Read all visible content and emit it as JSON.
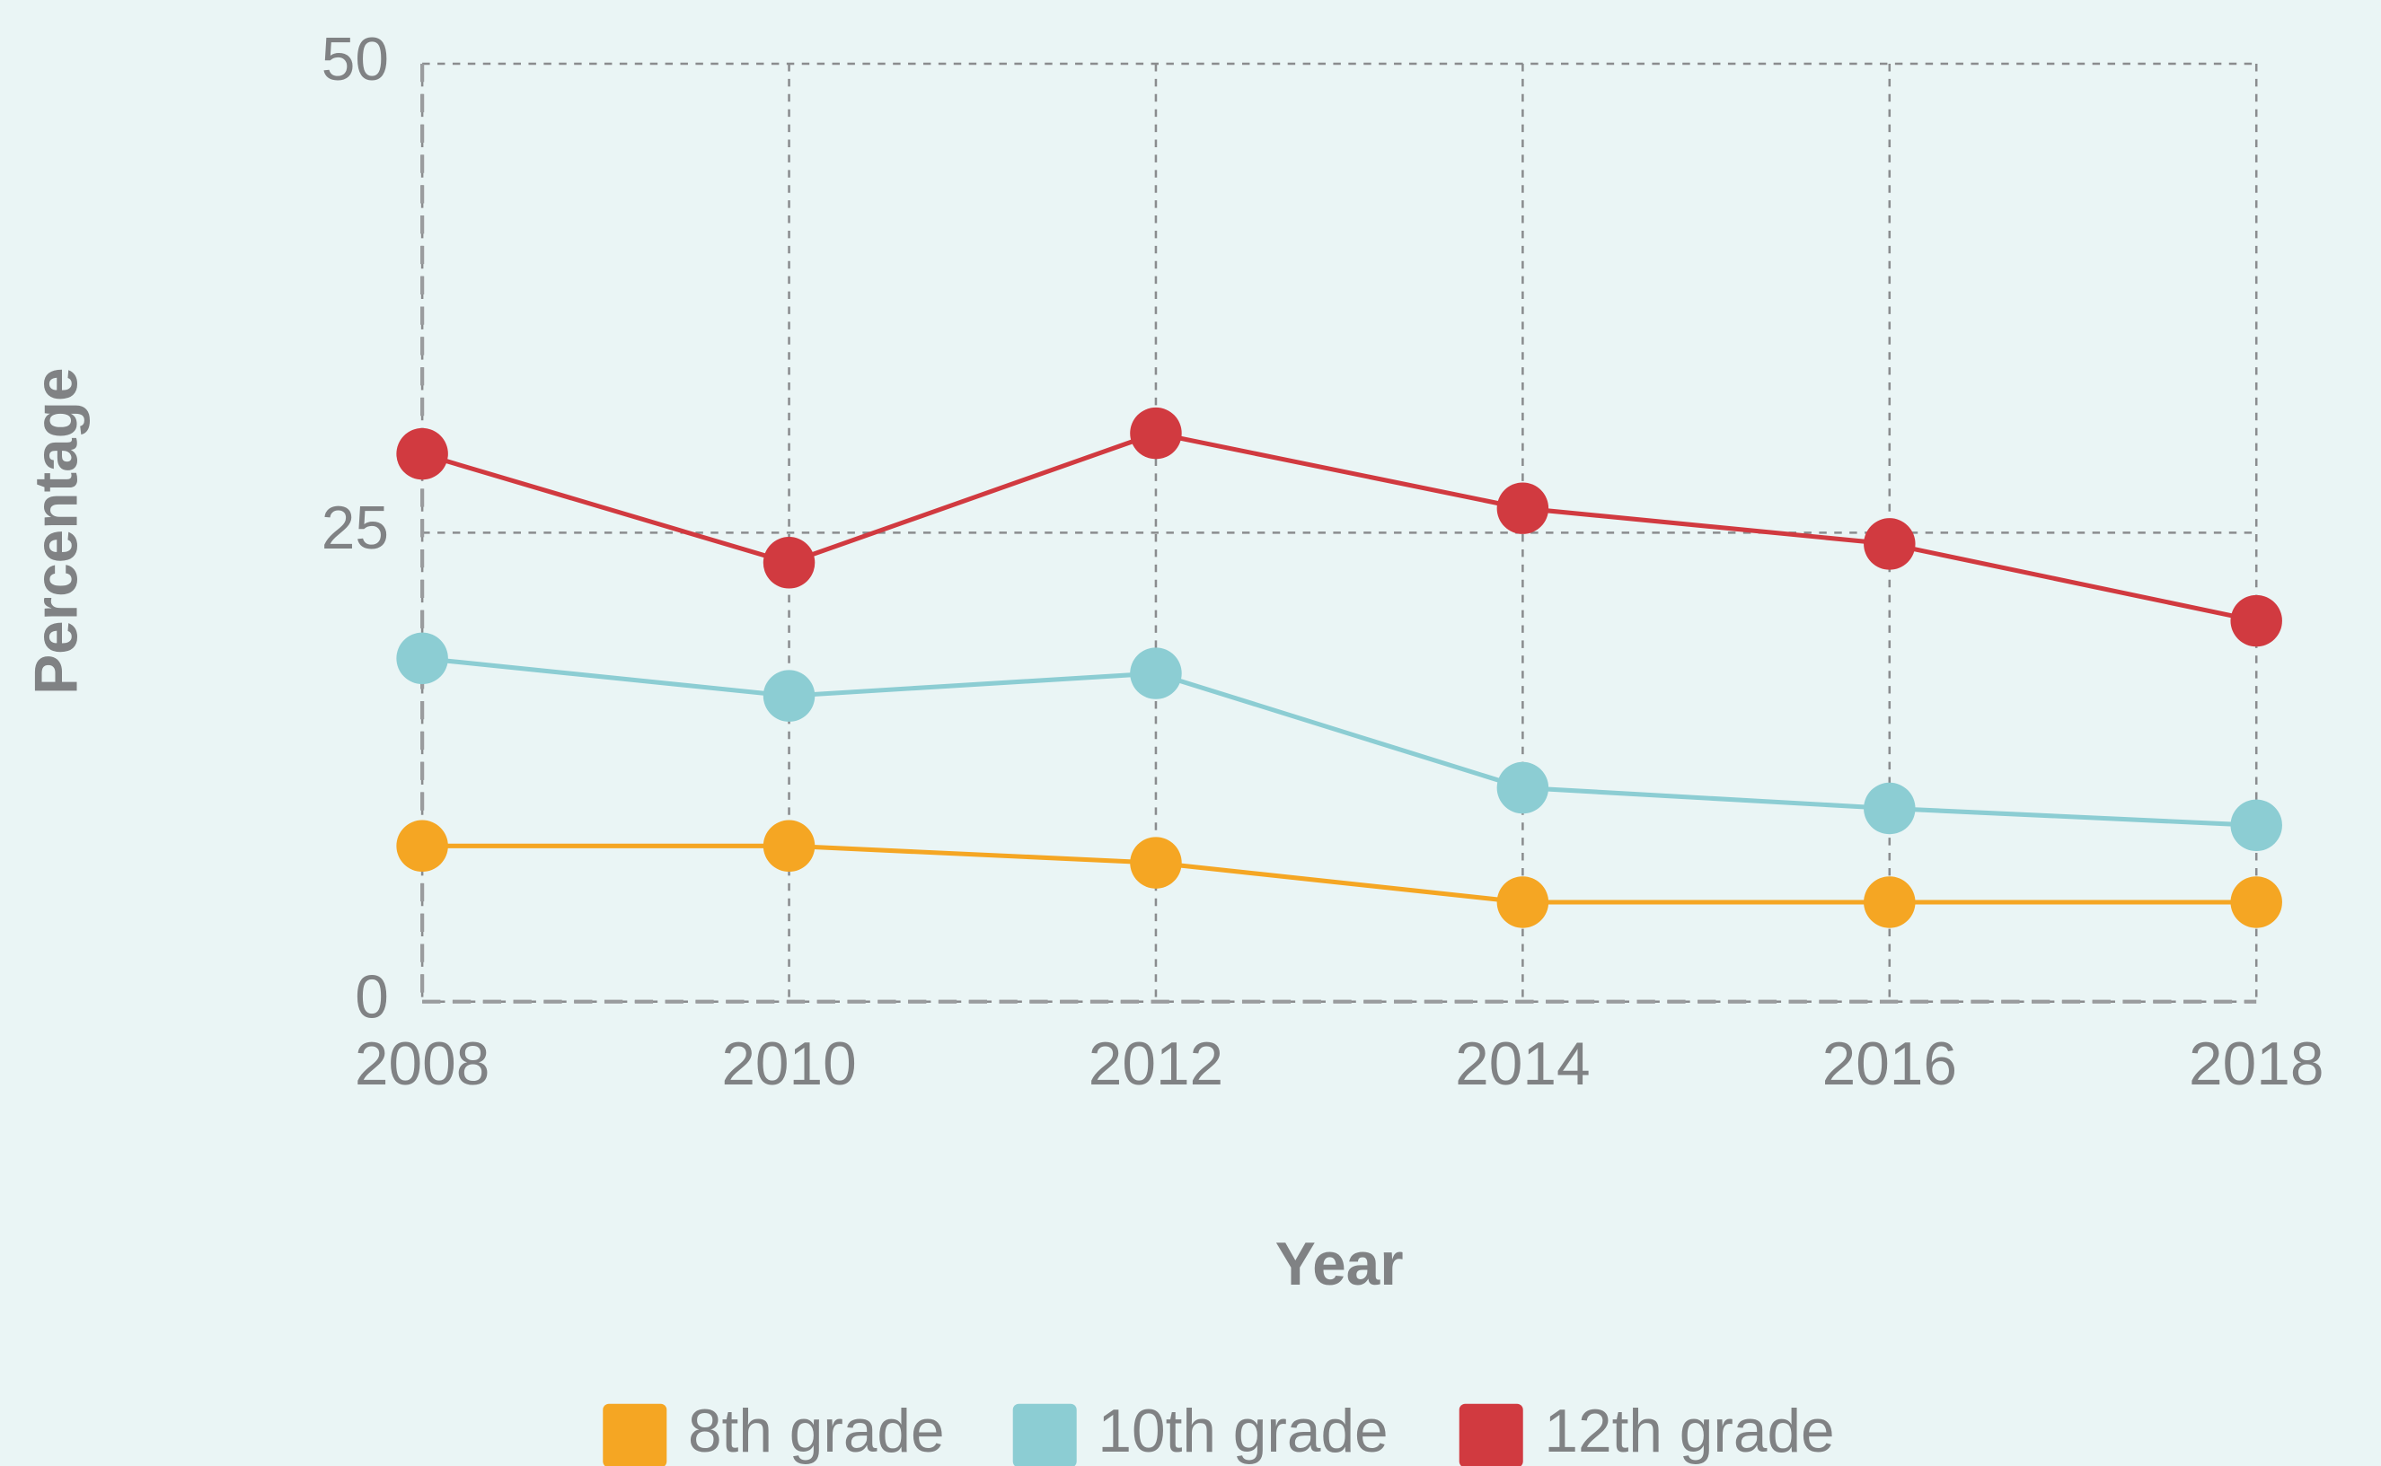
{
  "chart_data": {
    "type": "line",
    "x": [
      2008,
      2010,
      2012,
      2014,
      2016,
      2018
    ],
    "xlim": [
      2008,
      2018
    ],
    "xticks": [
      2008,
      2010,
      2012,
      2014,
      2016,
      2018
    ],
    "ylim": [
      0,
      50
    ],
    "yticks": [
      0,
      25,
      50
    ],
    "x_label": "Year",
    "y_label": "Percentage",
    "grid": true,
    "legend": "bottom",
    "series": [
      {
        "name": "8th grade",
        "color": "#f5a623",
        "values": [
          8.3,
          8.3,
          7.4,
          5.3,
          5.3,
          5.3
        ]
      },
      {
        "name": "10th grade",
        "color": "#8ccdd3",
        "values": [
          18.3,
          16.3,
          17.5,
          11.4,
          10.3,
          9.4
        ]
      },
      {
        "name": "12th grade",
        "color": "#d13a40",
        "values": [
          29.2,
          23.4,
          30.3,
          26.3,
          24.4,
          20.3
        ]
      }
    ]
  }
}
